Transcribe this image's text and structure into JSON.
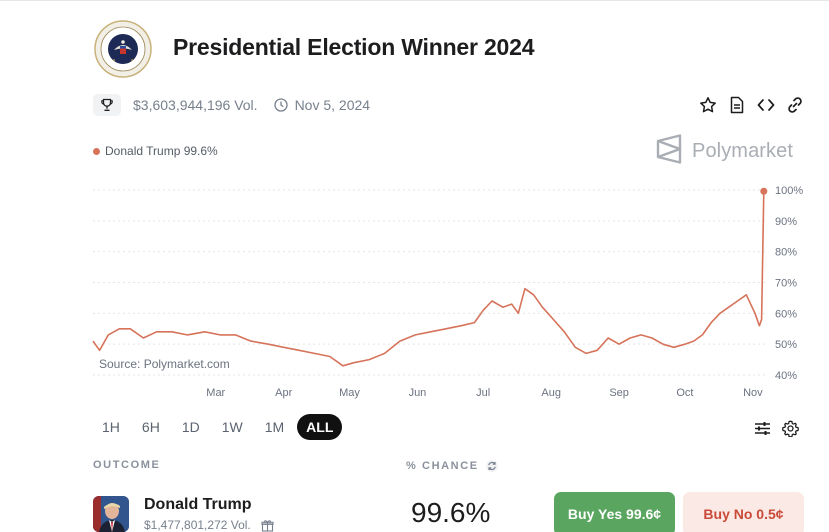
{
  "market": {
    "title": "Presidential Election Winner 2024",
    "volume": "$3,603,944,196 Vol.",
    "date": "Nov 5, 2024"
  },
  "icons": {
    "seal": "presidential-seal-icon",
    "trophy": "trophy-icon",
    "clock": "clock-icon",
    "star": "star-icon",
    "document": "document-icon",
    "embed": "code-icon",
    "link": "link-icon",
    "brand": "polymarket-logo-icon",
    "settings_sliders": "sliders-icon",
    "gear": "gear-icon",
    "refresh": "refresh-icon",
    "gift": "gift-icon"
  },
  "colors": {
    "series": "#d6735a",
    "yes": "#5aa55f",
    "no_bg": "#fbe9e6",
    "no_text": "#c94a38"
  },
  "legend": {
    "label": "Donald Trump 99.6%"
  },
  "brand": {
    "name": "Polymarket"
  },
  "source": "Source: Polymarket.com",
  "ranges": [
    "1H",
    "6H",
    "1D",
    "1W",
    "1M",
    "ALL"
  ],
  "active_range": "ALL",
  "table": {
    "col_outcome": "OUTCOME",
    "col_chance": "% CHANCE"
  },
  "outcome": {
    "name": "Donald Trump",
    "volume": "$1,477,801,272 Vol.",
    "chance": "99.6%",
    "buy_yes": "Buy Yes 99.6¢",
    "buy_no": "Buy No 0.5¢"
  },
  "chart_data": {
    "type": "line",
    "ylim": [
      40,
      100
    ],
    "yticks": [
      40,
      50,
      60,
      70,
      80,
      90,
      100
    ],
    "ytick_labels": [
      "40%",
      "50%",
      "60%",
      "70%",
      "80%",
      "90%",
      "100%"
    ],
    "xlim": [
      "2024-01-05",
      "2024-11-07"
    ],
    "x_tick_dates": [
      "2024-03-01",
      "2024-04-01",
      "2024-05-01",
      "2024-06-01",
      "2024-07-01",
      "2024-08-01",
      "2024-09-01",
      "2024-10-01",
      "2024-11-01"
    ],
    "xtick_labels": [
      "Mar",
      "Apr",
      "May",
      "Jun",
      "Jul",
      "Aug",
      "Sep",
      "Oct",
      "Nov"
    ],
    "grid": true,
    "legend_position": "top-left",
    "series": [
      {
        "name": "Donald Trump",
        "x": [
          "2024-01-05",
          "2024-01-08",
          "2024-01-12",
          "2024-01-17",
          "2024-01-22",
          "2024-01-28",
          "2024-02-03",
          "2024-02-10",
          "2024-02-17",
          "2024-02-25",
          "2024-03-03",
          "2024-03-10",
          "2024-03-17",
          "2024-03-25",
          "2024-04-01",
          "2024-04-08",
          "2024-04-15",
          "2024-04-22",
          "2024-04-28",
          "2024-05-03",
          "2024-05-10",
          "2024-05-17",
          "2024-05-24",
          "2024-05-31",
          "2024-06-07",
          "2024-06-14",
          "2024-06-21",
          "2024-06-27",
          "2024-07-01",
          "2024-07-05",
          "2024-07-10",
          "2024-07-14",
          "2024-07-17",
          "2024-07-20",
          "2024-07-24",
          "2024-07-28",
          "2024-08-02",
          "2024-08-07",
          "2024-08-12",
          "2024-08-17",
          "2024-08-22",
          "2024-08-27",
          "2024-09-01",
          "2024-09-06",
          "2024-09-11",
          "2024-09-16",
          "2024-09-21",
          "2024-09-26",
          "2024-10-01",
          "2024-10-05",
          "2024-10-09",
          "2024-10-13",
          "2024-10-17",
          "2024-10-21",
          "2024-10-25",
          "2024-10-29",
          "2024-11-02",
          "2024-11-04",
          "2024-11-05",
          "2024-11-06"
        ],
        "values": [
          51,
          48,
          53,
          55,
          55,
          52,
          54,
          54,
          53,
          54,
          53,
          53,
          51,
          50,
          49,
          48,
          47,
          46,
          43,
          44,
          45,
          47,
          51,
          53,
          54,
          55,
          56,
          57,
          61,
          64,
          62,
          63,
          60,
          68,
          66,
          62,
          58,
          54,
          49,
          47,
          48,
          52,
          50,
          52,
          53,
          52,
          50,
          49,
          50,
          51,
          53,
          57,
          60,
          62,
          64,
          66,
          60,
          56,
          58,
          99.6
        ]
      }
    ]
  }
}
